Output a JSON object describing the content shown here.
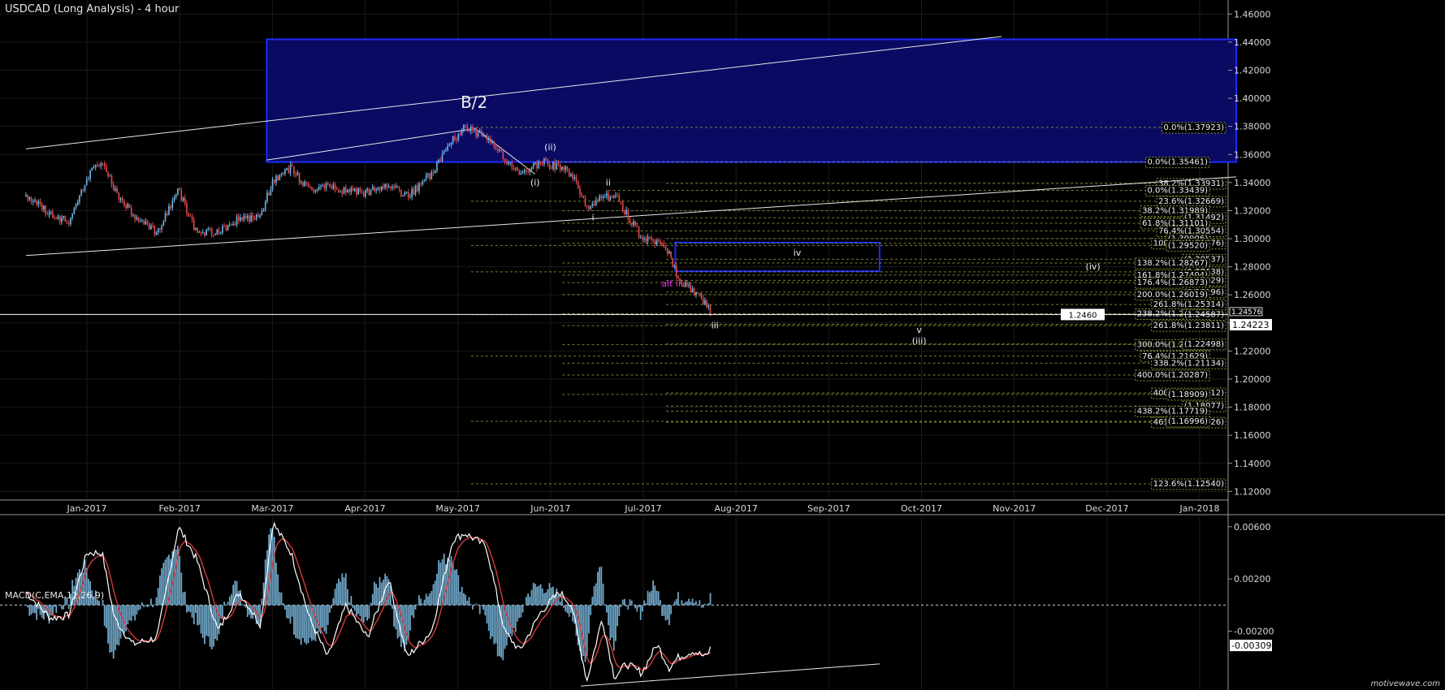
{
  "title": "USDCAD (Long  Analysis) - 4 hour",
  "macd_label": "MACD(C,EMA,12,26,9)",
  "watermark": "motivewave.com",
  "colors": {
    "background": "#000000",
    "grid": "#1b1b1b",
    "up_candle": "#6fb6e8",
    "down_candle": "#e24a4a",
    "zone_fill": "#0a0a63",
    "zone_stroke": "#1c2bff",
    "fib_line": "#8e9a3a",
    "trend_line": "#e8e8e8",
    "alt_label": "#e23ae2",
    "macd_hist": "#6fa6c8",
    "macd_line": "#ffffff",
    "signal_line": "#d63a3a"
  },
  "chart_data": [
    {
      "type": "candlestick",
      "title": "USDCAD (Long  Analysis) - 4 hour",
      "x_ticks": [
        "Jan-2017",
        "Feb-2017",
        "Mar-2017",
        "Apr-2017",
        "May-2017",
        "Jun-2017",
        "Jul-2017",
        "Aug-2017",
        "Sep-2017",
        "Oct-2017",
        "Nov-2017",
        "Dec-2017",
        "Jan-2018"
      ],
      "y_ticks": [
        "1.46000",
        "1.44000",
        "1.42000",
        "1.40000",
        "1.38000",
        "1.36000",
        "1.34000",
        "1.32000",
        "1.30000",
        "1.28000",
        "1.26000",
        "1.24000",
        "1.22000",
        "1.20000",
        "1.18000",
        "1.16000",
        "1.14000",
        "1.12000"
      ],
      "ylim": [
        1.115,
        1.47
      ],
      "grid": true,
      "price_path": [
        [
          "2016-12-12",
          1.33
        ],
        [
          "2016-12-20",
          1.318
        ],
        [
          "2016-12-26",
          1.312
        ],
        [
          "2017-01-01",
          1.343
        ],
        [
          "2017-01-06",
          1.357
        ],
        [
          "2017-01-10",
          1.335
        ],
        [
          "2017-01-16",
          1.318
        ],
        [
          "2017-01-24",
          1.304
        ],
        [
          "2017-01-31",
          1.335
        ],
        [
          "2017-02-06",
          1.304
        ],
        [
          "2017-02-13",
          1.305
        ],
        [
          "2017-02-20",
          1.314
        ],
        [
          "2017-02-27",
          1.316
        ],
        [
          "2017-03-03",
          1.342
        ],
        [
          "2017-03-09",
          1.35
        ],
        [
          "2017-03-15",
          1.334
        ],
        [
          "2017-03-21",
          1.337
        ],
        [
          "2017-03-27",
          1.334
        ],
        [
          "2017-04-03",
          1.333
        ],
        [
          "2017-04-10",
          1.339
        ],
        [
          "2017-04-16",
          1.33
        ],
        [
          "2017-04-24",
          1.346
        ],
        [
          "2017-05-01",
          1.37
        ],
        [
          "2017-05-05",
          1.379
        ],
        [
          "2017-05-12",
          1.372
        ],
        [
          "2017-05-18",
          1.357
        ],
        [
          "2017-05-23",
          1.345
        ],
        [
          "2017-05-30",
          1.355
        ],
        [
          "2017-06-05",
          1.351
        ],
        [
          "2017-06-09",
          1.346
        ],
        [
          "2017-06-14",
          1.322
        ],
        [
          "2017-06-19",
          1.33
        ],
        [
          "2017-06-23",
          1.331
        ],
        [
          "2017-06-27",
          1.318
        ],
        [
          "2017-07-02",
          1.3
        ],
        [
          "2017-07-07",
          1.297
        ],
        [
          "2017-07-11",
          1.29
        ],
        [
          "2017-07-14",
          1.271
        ],
        [
          "2017-07-19",
          1.263
        ],
        [
          "2017-07-23",
          1.253
        ],
        [
          "2017-07-25",
          1.246
        ]
      ],
      "last_price": "1.24223",
      "horizontal_line": {
        "value": 1.246,
        "label": "1.2460"
      },
      "right_marker": "1.24576",
      "zones": [
        {
          "from": "2017-03-01",
          "to": "2018-01-13",
          "top": 1.442,
          "bottom": 1.3546
        },
        {
          "from": "2017-07-13",
          "to": "2017-09-18",
          "top": 1.2972,
          "bottom": 1.2768,
          "label": "iv"
        }
      ],
      "trend_lines": [
        {
          "from": [
            "2016-12-12",
            1.364
          ],
          "to": [
            "2017-10-28",
            1.444
          ]
        },
        {
          "from": [
            "2016-12-12",
            1.288
          ],
          "to": [
            "2018-01-13",
            1.344
          ]
        },
        {
          "from": [
            "2017-03-01",
            1.356
          ],
          "to": [
            "2017-05-07",
            1.378
          ]
        },
        {
          "from": [
            "2017-05-08",
            1.379
          ],
          "to": [
            "2017-05-28",
            1.346
          ]
        }
      ],
      "wave_labels": [
        {
          "text": "B/2",
          "date": "2017-05-08",
          "price": 1.393,
          "size": 20
        },
        {
          "text": "(i)",
          "date": "2017-05-28",
          "price": 1.338
        },
        {
          "text": "(ii)",
          "date": "2017-06-02",
          "price": 1.363
        },
        {
          "text": "ii",
          "date": "2017-06-21",
          "price": 1.338
        },
        {
          "text": "i",
          "date": "2017-06-16",
          "price": 1.313
        },
        {
          "text": "iv",
          "date": "2017-08-22",
          "price": 1.288
        },
        {
          "text": "alt iii",
          "date": "2017-07-12",
          "price": 1.266,
          "color": "alt"
        },
        {
          "text": "iii",
          "date": "2017-07-26",
          "price": 1.236
        },
        {
          "text": "(iv)",
          "date": "2017-11-27",
          "price": 1.278
        },
        {
          "text": "v",
          "date": "2017-10-01",
          "price": 1.233
        },
        {
          "text": "(iii)",
          "date": "2017-10-01",
          "price": 1.225
        }
      ],
      "fib_levels": [
        {
          "label": "0.0%(1.37923)",
          "value": 1.37923,
          "from": "2017-05-07"
        },
        {
          "label": "0.0%(1.35461)",
          "value": 1.35461,
          "from": "2017-06-05"
        },
        {
          "label": "38.2%(1.33931)",
          "value": 1.33931,
          "from": "2017-07-10"
        },
        {
          "label": "0.0%(1.33439)",
          "value": 1.33439,
          "from": "2017-06-21"
        },
        {
          "label": "23.6%(1.32669)",
          "value": 1.32669,
          "from": "2017-05-07"
        },
        {
          "label": "38.2%(1.31989)",
          "value": 1.31989,
          "from": "2017-06-06"
        },
        {
          "label": "(1.31492)",
          "value": 1.31492,
          "from": "2017-07-10"
        },
        {
          "label": "61.8%(1.31101)",
          "value": 1.31101,
          "from": "2017-06-06"
        },
        {
          "label": "76.4%(1.30554)",
          "value": 1.30554,
          "from": "2017-06-06"
        },
        {
          "label": "(1.30006)",
          "value": 1.30006,
          "from": "2017-07-10"
        },
        {
          "label": "100.0%(1.29676)",
          "value": 1.29676,
          "from": "2017-06-06"
        },
        {
          "label": "(1.29520)",
          "value": 1.2952,
          "from": "2017-05-07"
        },
        {
          "label": "(1.28537)",
          "value": 1.28537,
          "from": "2017-07-10"
        },
        {
          "label": "138.2%(1.28267)",
          "value": 1.28267,
          "from": "2017-06-06"
        },
        {
          "label": "(1.27638)",
          "value": 1.27638,
          "from": "2017-05-07"
        },
        {
          "label": "161.8%(1.27404)",
          "value": 1.27404,
          "from": "2017-06-06"
        },
        {
          "label": "(1.27029)",
          "value": 1.27029,
          "from": "2017-07-10"
        },
        {
          "label": "176.4%(1.26873)",
          "value": 1.26873,
          "from": "2017-06-06"
        },
        {
          "label": "(1.26196)",
          "value": 1.26196,
          "from": "2017-07-10"
        },
        {
          "label": "200.0%(1.26019)",
          "value": 1.26019,
          "from": "2017-06-06"
        },
        {
          "label": "261.8%(1.25314)",
          "value": 1.25314,
          "from": "2017-07-10"
        },
        {
          "label": "238.2%(1.24650)",
          "value": 1.2465,
          "from": "2017-06-06"
        },
        {
          "label": "(1.24587)",
          "value": 1.24587,
          "from": "2017-05-07"
        },
        {
          "label": "(1.23898)",
          "value": 1.23898,
          "from": "2017-07-10"
        },
        {
          "label": "261.8%(1.23811)",
          "value": 1.23811,
          "from": "2017-06-06"
        },
        {
          "label": "300.0%(1.22465)",
          "value": 1.22465,
          "from": "2017-06-06"
        },
        {
          "label": "(1.22498)",
          "value": 1.22498,
          "from": "2017-07-10"
        },
        {
          "label": "76.4%(1.21629)",
          "value": 1.21629,
          "from": "2017-05-07"
        },
        {
          "label": "338.2%(1.21134)",
          "value": 1.21134,
          "from": "2017-06-06"
        },
        {
          "label": "400.0%(1.20287)",
          "value": 1.20287,
          "from": "2017-06-06"
        },
        {
          "label": "400.0%(1.19012)",
          "value": 1.19012,
          "from": "2017-07-10"
        },
        {
          "label": "(1.18909)",
          "value": 1.18909,
          "from": "2017-06-06"
        },
        {
          "label": "(1.18077)",
          "value": 1.18077,
          "from": "2017-07-10"
        },
        {
          "label": "438.2%(1.17719)",
          "value": 1.17719,
          "from": "2017-07-10"
        },
        {
          "label": "461.8%(1.16926)",
          "value": 1.16926,
          "from": "2017-07-10"
        },
        {
          "label": "(1.16996)",
          "value": 1.16996,
          "from": "2017-05-07"
        },
        {
          "label": "123.6%(1.12540)",
          "value": 1.1254,
          "from": "2017-05-07"
        }
      ]
    },
    {
      "type": "line",
      "title": "MACD(C,EMA,12,26,9)",
      "y_ticks": [
        "0.00600",
        "0.00200",
        "-0.00200"
      ],
      "ylim": [
        -0.0065,
        0.0068
      ],
      "zero_line": 0.0,
      "dashed_line": 0.0,
      "last_value": "-0.00309",
      "series": [
        {
          "kind": "histogram"
        },
        {
          "kind": "macd"
        },
        {
          "kind": "signal"
        }
      ],
      "points": [
        [
          "2016-12-12",
          0.001
        ],
        [
          "2016-12-20",
          -0.001
        ],
        [
          "2016-12-26",
          -0.0008
        ],
        [
          "2017-01-01",
          0.004
        ],
        [
          "2017-01-06",
          0.004
        ],
        [
          "2017-01-10",
          -0.001
        ],
        [
          "2017-01-16",
          -0.003
        ],
        [
          "2017-01-24",
          -0.0025
        ],
        [
          "2017-01-31",
          0.006
        ],
        [
          "2017-02-06",
          0.0035
        ],
        [
          "2017-02-13",
          -0.002
        ],
        [
          "2017-02-20",
          0.001
        ],
        [
          "2017-02-27",
          -0.0015
        ],
        [
          "2017-03-03",
          0.0063
        ],
        [
          "2017-03-09",
          0.004
        ],
        [
          "2017-03-15",
          -0.001
        ],
        [
          "2017-03-21",
          -0.004
        ],
        [
          "2017-03-27",
          0.0
        ],
        [
          "2017-04-03",
          -0.0025
        ],
        [
          "2017-04-10",
          0.002
        ],
        [
          "2017-04-16",
          -0.004
        ],
        [
          "2017-04-24",
          -0.002
        ],
        [
          "2017-05-01",
          0.005
        ],
        [
          "2017-05-05",
          0.0055
        ],
        [
          "2017-05-12",
          0.0045
        ],
        [
          "2017-05-18",
          -0.002
        ],
        [
          "2017-05-23",
          -0.0035
        ],
        [
          "2017-05-30",
          -0.0005
        ],
        [
          "2017-06-05",
          0.001
        ],
        [
          "2017-06-09",
          0.0
        ],
        [
          "2017-06-14",
          -0.0058
        ],
        [
          "2017-06-19",
          -0.001
        ],
        [
          "2017-06-23",
          -0.0055
        ],
        [
          "2017-06-27",
          -0.0045
        ],
        [
          "2017-07-02",
          -0.0052
        ],
        [
          "2017-07-07",
          -0.003
        ],
        [
          "2017-07-11",
          -0.0048
        ],
        [
          "2017-07-14",
          -0.004
        ],
        [
          "2017-07-19",
          -0.0035
        ],
        [
          "2017-07-23",
          -0.004
        ],
        [
          "2017-07-25",
          -0.0031
        ]
      ],
      "trend_line": {
        "from": [
          "2017-06-12",
          -0.0062
        ],
        "to": [
          "2017-09-18",
          -0.0045
        ]
      }
    }
  ]
}
